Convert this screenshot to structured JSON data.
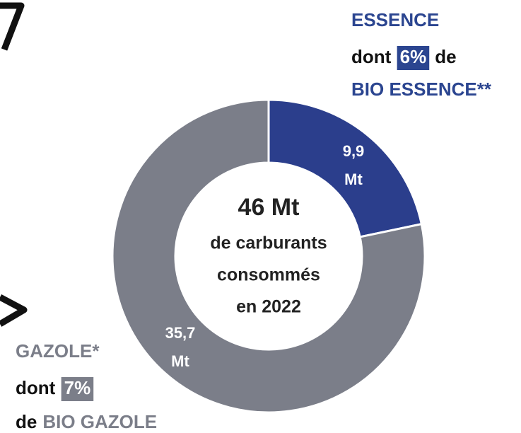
{
  "chart_data": {
    "type": "donut",
    "categories": [
      "ESSENCE",
      "GAZOLE*"
    ],
    "values": [
      9.9,
      35.7
    ],
    "value_labels": [
      "9,9 Mt",
      "35,7 Mt"
    ],
    "colors": [
      "#2b3e8c",
      "#7b7e89"
    ],
    "center_text": [
      "46 Mt",
      "de carburants",
      "consommés",
      "en 2022"
    ],
    "annotations": [
      {
        "prefix": "dont",
        "highlight": "6%",
        "suffix": "de",
        "detail": "BIO ESSENCE**"
      },
      {
        "prefix": "dont",
        "highlight": "7%",
        "suffix": "de",
        "detail": "BIO GAZOLE"
      }
    ]
  }
}
